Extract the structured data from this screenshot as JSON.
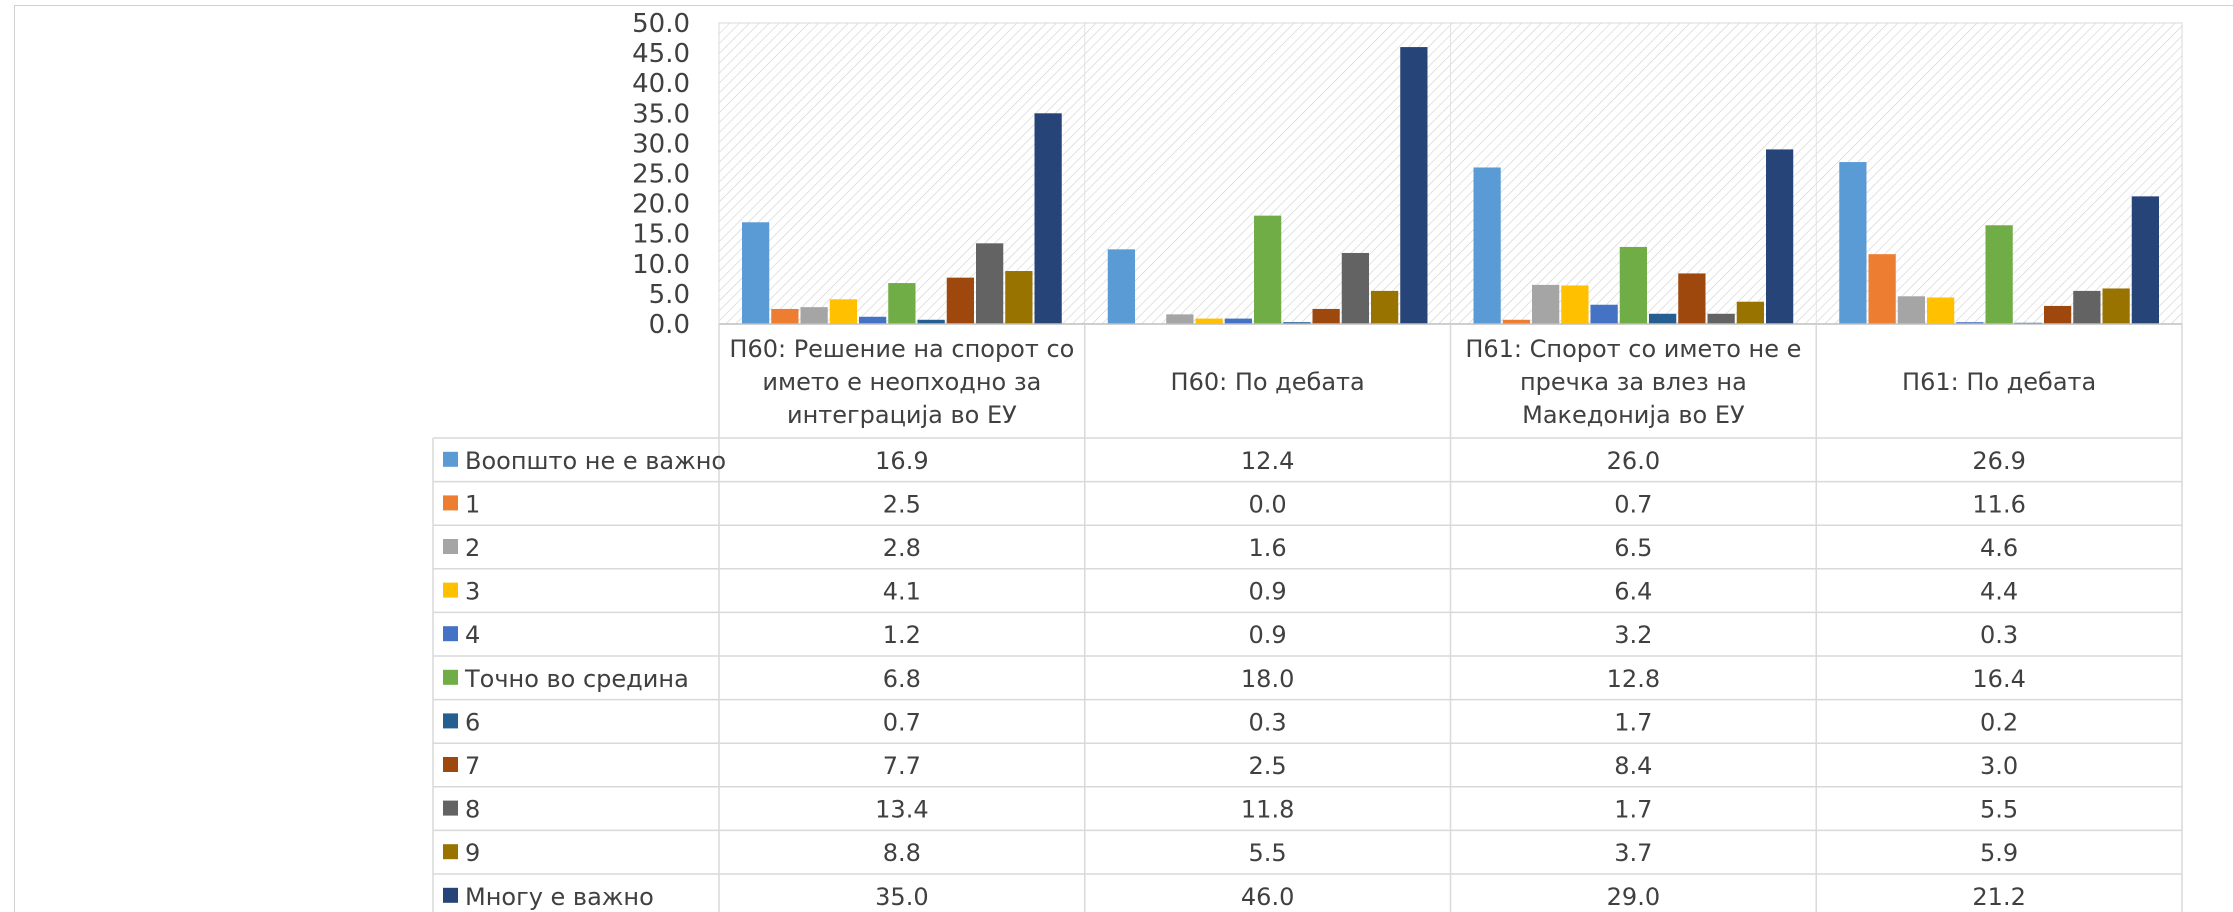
{
  "chart_data": {
    "type": "bar",
    "title": "",
    "xlabel": "",
    "ylabel": "",
    "ylim": [
      0,
      50
    ],
    "yticks": [
      "0.0",
      "5.0",
      "10.0",
      "15.0",
      "20.0",
      "25.0",
      "30.0",
      "35.0",
      "40.0",
      "45.0",
      "50.0"
    ],
    "grid": "hatched plot background",
    "legend": "data table below chart",
    "categories": [
      [
        "П60: Решение на спорот со",
        "името е неопходно за",
        "интеграција во ЕУ"
      ],
      [
        "П60: По дебата"
      ],
      [
        "П61: Спорот со името не е",
        "пречка за влез на",
        "Македонија во ЕУ"
      ],
      [
        "П61: По дебата"
      ]
    ],
    "series": [
      {
        "name": "Воопшто не е важно",
        "color": "#5b9bd5",
        "values": [
          16.9,
          12.4,
          26.0,
          26.9
        ],
        "labels": [
          "16.9",
          "12.4",
          "26.0",
          "26.9"
        ]
      },
      {
        "name": "1",
        "color": "#ed7d31",
        "values": [
          2.5,
          0.0,
          0.7,
          11.6
        ],
        "labels": [
          "2.5",
          "0.0",
          "0.7",
          "11.6"
        ]
      },
      {
        "name": "2",
        "color": "#a5a5a5",
        "values": [
          2.8,
          1.6,
          6.5,
          4.6
        ],
        "labels": [
          "2.8",
          "1.6",
          "6.5",
          "4.6"
        ]
      },
      {
        "name": "3",
        "color": "#ffc000",
        "values": [
          4.1,
          0.9,
          6.4,
          4.4
        ],
        "labels": [
          "4.1",
          "0.9",
          "6.4",
          "4.4"
        ]
      },
      {
        "name": "4",
        "color": "#4472c4",
        "values": [
          1.2,
          0.9,
          3.2,
          0.3
        ],
        "labels": [
          "1.2",
          "0.9",
          "3.2",
          "0.3"
        ]
      },
      {
        "name": "Точно во средина",
        "color": "#70ad47",
        "values": [
          6.8,
          18.0,
          12.8,
          16.4
        ],
        "labels": [
          "6.8",
          "18.0",
          "12.8",
          "16.4"
        ]
      },
      {
        "name": "6",
        "color": "#255e91",
        "values": [
          0.7,
          0.3,
          1.7,
          0.2
        ],
        "labels": [
          "0.7",
          "0.3",
          "1.7",
          "0.2"
        ]
      },
      {
        "name": "7",
        "color": "#9e480e",
        "values": [
          7.7,
          2.5,
          8.4,
          3.0
        ],
        "labels": [
          "7.7",
          "2.5",
          "8.4",
          "3.0"
        ]
      },
      {
        "name": "8",
        "color": "#636363",
        "values": [
          13.4,
          11.8,
          1.7,
          5.5
        ],
        "labels": [
          "13.4",
          "11.8",
          "1.7",
          "5.5"
        ]
      },
      {
        "name": "9",
        "color": "#997300",
        "values": [
          8.8,
          5.5,
          3.7,
          5.9
        ],
        "labels": [
          "8.8",
          "5.5",
          "3.7",
          "5.9"
        ]
      },
      {
        "name": "Многу е важно",
        "color": "#264478",
        "values": [
          35.0,
          46.0,
          29.0,
          21.2
        ],
        "labels": [
          "35.0",
          "46.0",
          "29.0",
          "21.2"
        ]
      }
    ]
  }
}
